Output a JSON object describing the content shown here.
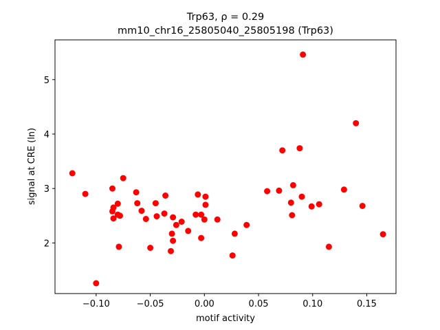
{
  "chart_data": {
    "type": "scatter",
    "title_line1": "Trp63, ρ = 0.29",
    "title_line2": "mm10_chr16_25805040_25805198 (Trp63)",
    "xlabel": "motif activity",
    "ylabel": "signal at CRE (ln)",
    "xlim": [
      -0.138,
      0.177
    ],
    "ylim": [
      1.07,
      5.73
    ],
    "xticks": [
      {
        "value": -0.1,
        "label": "−0.10"
      },
      {
        "value": -0.05,
        "label": "−0.05"
      },
      {
        "value": 0.0,
        "label": "0.00"
      },
      {
        "value": 0.05,
        "label": "0.05"
      },
      {
        "value": 0.1,
        "label": "0.10"
      },
      {
        "value": 0.15,
        "label": "0.15"
      }
    ],
    "yticks": [
      {
        "value": 2,
        "label": "2"
      },
      {
        "value": 3,
        "label": "3"
      },
      {
        "value": 4,
        "label": "4"
      },
      {
        "value": 5,
        "label": "5"
      }
    ],
    "grid": false,
    "point_color": "#ff0000",
    "points": [
      {
        "x": -0.122,
        "y": 3.28
      },
      {
        "x": -0.11,
        "y": 2.9
      },
      {
        "x": -0.1,
        "y": 1.26
      },
      {
        "x": -0.085,
        "y": 3.0
      },
      {
        "x": -0.085,
        "y": 2.58
      },
      {
        "x": -0.084,
        "y": 2.65
      },
      {
        "x": -0.084,
        "y": 2.45
      },
      {
        "x": -0.08,
        "y": 2.72
      },
      {
        "x": -0.08,
        "y": 2.52
      },
      {
        "x": -0.078,
        "y": 2.5
      },
      {
        "x": -0.079,
        "y": 1.93
      },
      {
        "x": -0.075,
        "y": 3.19
      },
      {
        "x": -0.063,
        "y": 2.93
      },
      {
        "x": -0.062,
        "y": 2.73
      },
      {
        "x": -0.058,
        "y": 2.59
      },
      {
        "x": -0.054,
        "y": 2.44
      },
      {
        "x": -0.05,
        "y": 1.91
      },
      {
        "x": -0.045,
        "y": 2.73
      },
      {
        "x": -0.044,
        "y": 2.49
      },
      {
        "x": -0.037,
        "y": 2.54
      },
      {
        "x": -0.036,
        "y": 2.87
      },
      {
        "x": -0.031,
        "y": 1.85
      },
      {
        "x": -0.03,
        "y": 2.17
      },
      {
        "x": -0.029,
        "y": 2.04
      },
      {
        "x": -0.029,
        "y": 2.47
      },
      {
        "x": -0.026,
        "y": 2.33
      },
      {
        "x": -0.021,
        "y": 2.39
      },
      {
        "x": -0.015,
        "y": 2.22
      },
      {
        "x": -0.008,
        "y": 2.52
      },
      {
        "x": -0.006,
        "y": 2.89
      },
      {
        "x": -0.003,
        "y": 2.52
      },
      {
        "x": -0.003,
        "y": 2.09
      },
      {
        "x": 0.0,
        "y": 2.43
      },
      {
        "x": 0.001,
        "y": 2.85
      },
      {
        "x": 0.001,
        "y": 2.7
      },
      {
        "x": 0.012,
        "y": 2.43
      },
      {
        "x": 0.026,
        "y": 1.77
      },
      {
        "x": 0.028,
        "y": 2.17
      },
      {
        "x": 0.039,
        "y": 2.33
      },
      {
        "x": 0.058,
        "y": 2.95
      },
      {
        "x": 0.069,
        "y": 2.96
      },
      {
        "x": 0.072,
        "y": 3.7
      },
      {
        "x": 0.08,
        "y": 2.74
      },
      {
        "x": 0.081,
        "y": 2.51
      },
      {
        "x": 0.082,
        "y": 3.06
      },
      {
        "x": 0.088,
        "y": 3.74
      },
      {
        "x": 0.09,
        "y": 2.85
      },
      {
        "x": 0.091,
        "y": 5.46
      },
      {
        "x": 0.099,
        "y": 2.67
      },
      {
        "x": 0.106,
        "y": 2.71
      },
      {
        "x": 0.115,
        "y": 1.93
      },
      {
        "x": 0.129,
        "y": 2.98
      },
      {
        "x": 0.14,
        "y": 4.2
      },
      {
        "x": 0.146,
        "y": 2.68
      },
      {
        "x": 0.165,
        "y": 2.16
      }
    ]
  }
}
